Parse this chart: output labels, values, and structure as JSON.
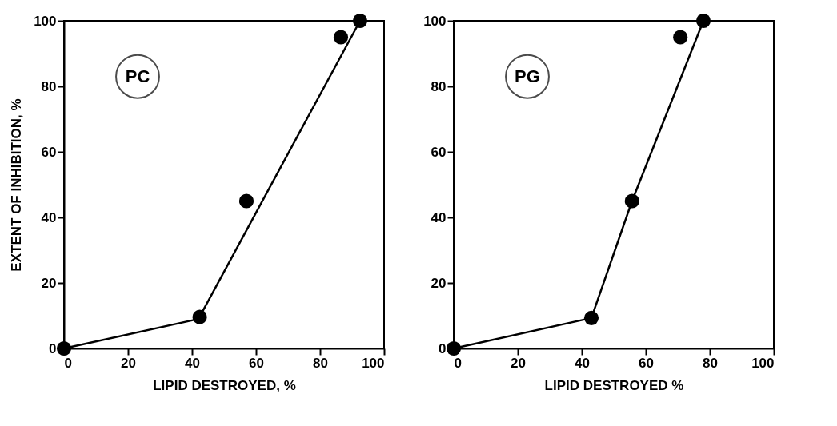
{
  "chart_data": [
    {
      "type": "scatter",
      "xlabel": "LIPID DESTROYED, %",
      "ylabel": "EXTENT OF INHIBITION, %",
      "annotations": [
        "PC"
      ],
      "xlim": [
        0,
        100
      ],
      "ylim": [
        0,
        100
      ],
      "xticks": [
        0,
        20,
        40,
        60,
        80,
        100
      ],
      "yticks": [
        0,
        20,
        40,
        60,
        80,
        100
      ],
      "grid": false,
      "series": [
        {
          "type": "line",
          "color": "#000000",
          "marker": "none",
          "x": [
            0,
            42,
            92.5
          ],
          "values": [
            0,
            9,
            100
          ]
        },
        {
          "color": "#000000",
          "marker": "circle",
          "x": [
            0,
            42.4,
            57,
            86.5,
            92.5
          ],
          "values": [
            0,
            9.6,
            45,
            95,
            100
          ]
        }
      ]
    },
    {
      "type": "scatter",
      "xlabel": "LIPID DESTROYED %",
      "annotations": [
        "PG"
      ],
      "xlim": [
        0,
        100
      ],
      "ylim": [
        0,
        100
      ],
      "xticks": [
        0,
        20,
        40,
        60,
        80,
        100
      ],
      "yticks": [
        0,
        20,
        40,
        60,
        80,
        100
      ],
      "grid": false,
      "series": [
        {
          "type": "line",
          "color": "#000000",
          "marker": "none",
          "x": [
            0,
            43,
            55.7,
            78
          ],
          "values": [
            0,
            9.3,
            45,
            100
          ]
        },
        {
          "color": "#000000",
          "marker": "circle",
          "x": [
            0,
            43,
            55.7,
            70.8,
            78
          ],
          "values": [
            0,
            9.3,
            45,
            95,
            100
          ]
        }
      ]
    }
  ]
}
